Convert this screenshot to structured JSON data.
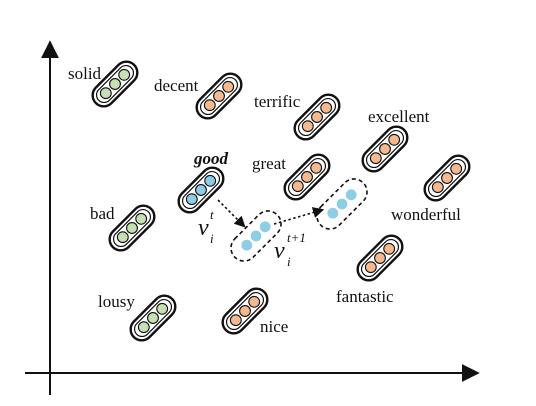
{
  "colors": {
    "green": "#c5e0b3",
    "orange": "#f5b98f",
    "blue": "#8ecde6",
    "outline": "#111111"
  },
  "words": [
    {
      "id": "solid",
      "label": "solid",
      "color": "green"
    },
    {
      "id": "decent",
      "label": "decent",
      "color": "orange"
    },
    {
      "id": "terrific",
      "label": "terrific",
      "color": "orange"
    },
    {
      "id": "excellent",
      "label": "excellent",
      "color": "orange"
    },
    {
      "id": "good",
      "label": "good",
      "color": "blue",
      "emphasis": "bold-italic"
    },
    {
      "id": "great",
      "label": "great",
      "color": "orange"
    },
    {
      "id": "bad",
      "label": "bad",
      "color": "green"
    },
    {
      "id": "wonderful",
      "label": "wonderful",
      "color": "orange"
    },
    {
      "id": "fantastic",
      "label": "fantastic",
      "color": "orange"
    },
    {
      "id": "lousy",
      "label": "lousy",
      "color": "green"
    },
    {
      "id": "nice",
      "label": "nice",
      "color": "orange"
    }
  ],
  "perturbed": [
    {
      "id": "step-1",
      "color": "blue",
      "style": "dashed"
    },
    {
      "id": "step-2",
      "color": "blue",
      "style": "dashed"
    }
  ],
  "math": {
    "v_t": {
      "base": "v",
      "sub": "i",
      "sup": "t"
    },
    "v_t1": {
      "base": "v",
      "sub": "i",
      "sup": "t+1"
    }
  },
  "axes": {
    "x_axis": "arrow",
    "y_axis": "arrow"
  }
}
